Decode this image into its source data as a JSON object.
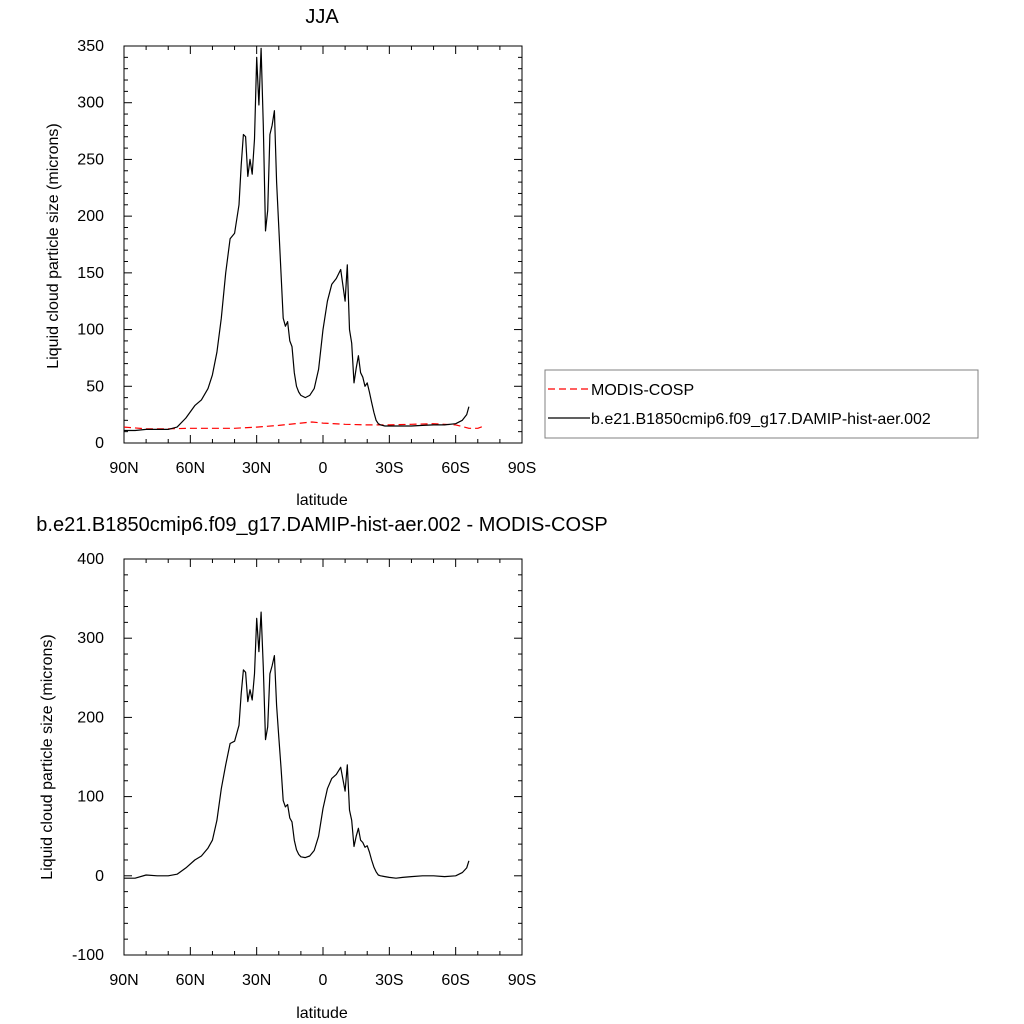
{
  "charts": {
    "top": {
      "title": "JJA",
      "ylabel": "Liquid cloud particle size (microns)",
      "xlabel": "latitude",
      "x_tick_labels": [
        "90N",
        "60N",
        "30N",
        "0",
        "30S",
        "60S",
        "90S"
      ],
      "y_tick_labels": [
        "0",
        "50",
        "100",
        "150",
        "200",
        "250",
        "300",
        "350"
      ]
    },
    "bottom": {
      "title": "b.e21.B1850cmip6.f09_g17.DAMIP-hist-aer.002 - MODIS-COSP",
      "ylabel": "Liquid cloud particle size (microns)",
      "xlabel": "latitude",
      "x_tick_labels": [
        "90N",
        "60N",
        "30N",
        "0",
        "30S",
        "60S",
        "90S"
      ],
      "y_tick_labels": [
        "-100",
        "0",
        "100",
        "200",
        "300",
        "400"
      ]
    }
  },
  "legend": {
    "items": [
      {
        "label": "MODIS-COSP",
        "color": "#ff0000",
        "dash": "dashed"
      },
      {
        "label": "b.e21.B1850cmip6.f09_g17.DAMIP-hist-aer.002",
        "color": "#000000",
        "dash": "solid"
      }
    ]
  },
  "chart_data": [
    {
      "type": "line",
      "title": "JJA",
      "xlabel": "latitude",
      "ylabel": "Liquid cloud particle size (microns)",
      "xlim": [
        90,
        -90
      ],
      "ylim": [
        0,
        350
      ],
      "series": [
        {
          "name": "MODIS-COSP",
          "color": "#ff0000",
          "style": "dashed",
          "x": [
            90,
            80,
            70,
            60,
            50,
            40,
            30,
            20,
            10,
            5,
            0,
            -10,
            -20,
            -30,
            -40,
            -50,
            -60,
            -66,
            -70,
            -72
          ],
          "y": [
            14,
            12.5,
            12.5,
            13,
            13,
            13,
            14,
            15.5,
            17.5,
            18.5,
            17.5,
            16.5,
            16,
            16,
            16.5,
            17,
            16,
            13,
            13,
            14.5
          ]
        },
        {
          "name": "b.e21.B1850cmip6.f09_g17.DAMIP-hist-aer.002",
          "color": "#000000",
          "style": "solid",
          "x": [
            90,
            85,
            80,
            75,
            70,
            66,
            62,
            58,
            55,
            52,
            50,
            48,
            46,
            44,
            42,
            40,
            38,
            37,
            36,
            35,
            34,
            33,
            32,
            31,
            30,
            29,
            28,
            27,
            26,
            25,
            24,
            23,
            22,
            21,
            20,
            19,
            18,
            17,
            16,
            15,
            14,
            13,
            12,
            11,
            10,
            8,
            6,
            4,
            2,
            0,
            -2,
            -4,
            -6,
            -8,
            -10,
            -11,
            -12,
            -13,
            -14,
            -15,
            -16,
            -17,
            -18,
            -19,
            -20,
            -21,
            -22,
            -23,
            -24,
            -25,
            -26,
            -28,
            -30,
            -33,
            -36,
            -40,
            -45,
            -50,
            -55,
            -60,
            -63,
            -65,
            -66
          ],
          "y": [
            11,
            11,
            12,
            12,
            12,
            14,
            22,
            33,
            38,
            48,
            60,
            80,
            110,
            150,
            180,
            185,
            210,
            245,
            272,
            270,
            235,
            250,
            237,
            268,
            340,
            298,
            348,
            280,
            187,
            205,
            272,
            280,
            293,
            230,
            190,
            150,
            110,
            103,
            107,
            90,
            85,
            62,
            50,
            45,
            42,
            40,
            42,
            48,
            65,
            100,
            125,
            140,
            145,
            153,
            125,
            157,
            100,
            88,
            53,
            66,
            77,
            62,
            58,
            50,
            53,
            45,
            36,
            27,
            20,
            17,
            16,
            15,
            15,
            15,
            15,
            15,
            15.5,
            16,
            16,
            17,
            20,
            25,
            32
          ]
        }
      ]
    },
    {
      "type": "line",
      "title": "b.e21.B1850cmip6.f09_g17.DAMIP-hist-aer.002 - MODIS-COSP",
      "xlabel": "latitude",
      "ylabel": "Liquid cloud particle size (microns)",
      "xlim": [
        90,
        -90
      ],
      "ylim": [
        -100,
        400
      ],
      "series": [
        {
          "name": "b.e21.B1850cmip6.f09_g17.DAMIP-hist-aer.002 - MODIS-COSP",
          "color": "#000000",
          "style": "solid",
          "x": [
            90,
            85,
            80,
            75,
            70,
            66,
            62,
            58,
            55,
            52,
            50,
            48,
            46,
            44,
            42,
            40,
            38,
            37,
            36,
            35,
            34,
            33,
            32,
            31,
            30,
            29,
            28,
            27,
            26,
            25,
            24,
            23,
            22,
            21,
            20,
            19,
            18,
            17,
            16,
            15,
            14,
            13,
            12,
            11,
            10,
            8,
            6,
            4,
            2,
            0,
            -2,
            -4,
            -6,
            -8,
            -10,
            -11,
            -12,
            -13,
            -14,
            -15,
            -16,
            -17,
            -18,
            -19,
            -20,
            -21,
            -22,
            -23,
            -24,
            -25,
            -26,
            -28,
            -30,
            -33,
            -36,
            -40,
            -45,
            -50,
            -55,
            -60,
            -63,
            -65,
            -66
          ],
          "y": [
            -3,
            -3,
            1,
            0,
            0,
            2,
            10,
            20,
            25,
            35,
            45,
            70,
            110,
            140,
            167,
            170,
            190,
            230,
            260,
            257,
            220,
            235,
            222,
            255,
            325,
            283,
            333,
            263,
            172,
            188,
            255,
            265,
            278,
            215,
            175,
            137,
            95,
            87,
            90,
            73,
            68,
            45,
            33,
            27,
            24,
            23,
            25,
            32,
            50,
            85,
            110,
            123,
            128,
            137,
            107,
            140,
            83,
            70,
            37,
            50,
            60,
            45,
            42,
            36,
            38,
            30,
            20,
            11,
            5,
            1,
            0,
            -1,
            -2,
            -3,
            -2,
            -1,
            0,
            0,
            -1,
            0,
            4,
            10,
            19
          ]
        }
      ]
    }
  ]
}
